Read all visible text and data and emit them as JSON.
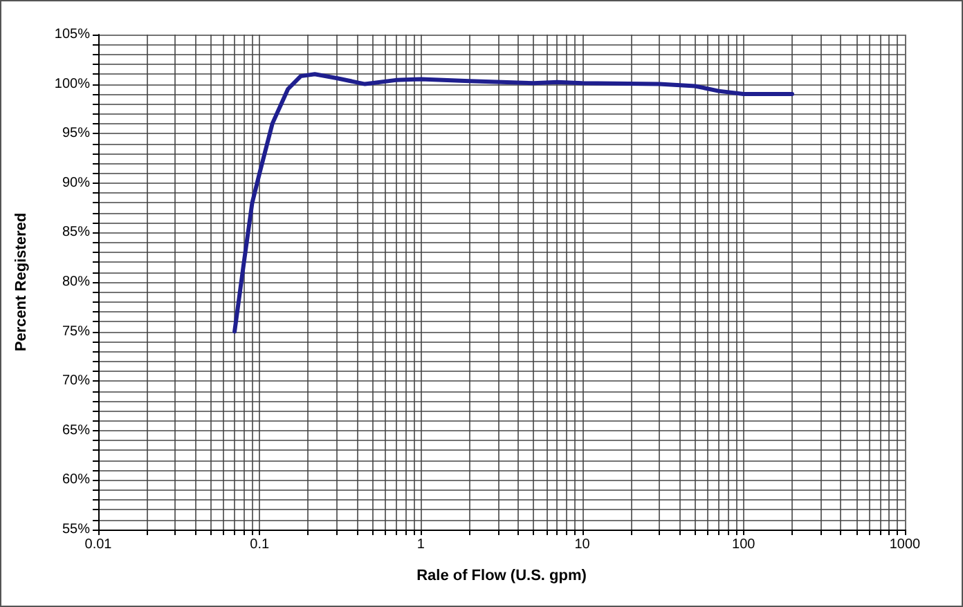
{
  "chart_data": {
    "type": "line",
    "xlabel": "Rale of Flow (U.S. gpm)",
    "ylabel": "Percent Registered",
    "x": [
      0.07,
      0.08,
      0.09,
      0.1,
      0.12,
      0.15,
      0.18,
      0.22,
      0.3,
      0.45,
      0.7,
      1,
      2,
      5,
      7,
      10,
      30,
      50,
      70,
      100,
      200
    ],
    "series": [
      {
        "color": "#1f1f8f",
        "values": [
          75,
          82,
          88,
          91,
          96,
          99.5,
          100.8,
          101,
          100.6,
          100,
          100.4,
          100.5,
          100.3,
          100.1,
          100.2,
          100.1,
          100,
          99.8,
          99.3,
          99,
          99
        ]
      }
    ],
    "log": "x",
    "grid": true,
    "marker": "none",
    "line_style": "solid",
    "xlim": [
      0.01,
      1000
    ],
    "ylim": [
      55,
      105
    ],
    "xticks": [
      0.01,
      {
        "value": 0.02,
        "label": null
      },
      {
        "value": 0.03,
        "label": null
      },
      {
        "value": 0.04,
        "label": null
      },
      {
        "value": 0.05,
        "label": null
      },
      {
        "value": 0.06,
        "label": null
      },
      {
        "value": 0.07,
        "label": null
      },
      {
        "value": 0.08,
        "label": null
      },
      {
        "value": 0.09,
        "label": null
      },
      0.1,
      {
        "value": 0.2,
        "label": null
      },
      {
        "value": 0.3,
        "label": null
      },
      {
        "value": 0.4,
        "label": null
      },
      {
        "value": 0.5,
        "label": null
      },
      {
        "value": 0.6,
        "label": null
      },
      {
        "value": 0.7,
        "label": null
      },
      {
        "value": 0.8,
        "label": null
      },
      {
        "value": 0.9,
        "label": null
      },
      1,
      {
        "value": 2,
        "label": null
      },
      {
        "value": 3,
        "label": null
      },
      {
        "value": 4,
        "label": null
      },
      {
        "value": 5,
        "label": null
      },
      {
        "value": 6,
        "label": null
      },
      {
        "value": 7,
        "label": null
      },
      {
        "value": 8,
        "label": null
      },
      {
        "value": 9,
        "label": null
      },
      10,
      {
        "value": 20,
        "label": null
      },
      {
        "value": 30,
        "label": null
      },
      {
        "value": 40,
        "label": null
      },
      {
        "value": 50,
        "label": null
      },
      {
        "value": 60,
        "label": null
      },
      {
        "value": 70,
        "label": null
      },
      {
        "value": 80,
        "label": null
      },
      {
        "value": 90,
        "label": null
      },
      100,
      {
        "value": 200,
        "label": null
      },
      {
        "value": 300,
        "label": null
      },
      {
        "value": 400,
        "label": null
      },
      {
        "value": 500,
        "label": null
      },
      {
        "value": 600,
        "label": null
      },
      {
        "value": 700,
        "label": null
      },
      {
        "value": 800,
        "label": null
      },
      {
        "value": 900,
        "label": null
      },
      1000
    ],
    "yticks": [
      {
        "value": 55,
        "label": "55%"
      },
      {
        "value": 56,
        "label": null
      },
      {
        "value": 57,
        "label": null
      },
      {
        "value": 58,
        "label": null
      },
      {
        "value": 59,
        "label": null
      },
      {
        "value": 60,
        "label": "60%"
      },
      {
        "value": 61,
        "label": null
      },
      {
        "value": 62,
        "label": null
      },
      {
        "value": 63,
        "label": null
      },
      {
        "value": 64,
        "label": null
      },
      {
        "value": 65,
        "label": "65%"
      },
      {
        "value": 66,
        "label": null
      },
      {
        "value": 67,
        "label": null
      },
      {
        "value": 68,
        "label": null
      },
      {
        "value": 69,
        "label": null
      },
      {
        "value": 70,
        "label": "70%"
      },
      {
        "value": 71,
        "label": null
      },
      {
        "value": 72,
        "label": null
      },
      {
        "value": 73,
        "label": null
      },
      {
        "value": 74,
        "label": null
      },
      {
        "value": 75,
        "label": "75%"
      },
      {
        "value": 76,
        "label": null
      },
      {
        "value": 77,
        "label": null
      },
      {
        "value": 78,
        "label": null
      },
      {
        "value": 79,
        "label": null
      },
      {
        "value": 80,
        "label": "80%"
      },
      {
        "value": 81,
        "label": null
      },
      {
        "value": 82,
        "label": null
      },
      {
        "value": 83,
        "label": null
      },
      {
        "value": 84,
        "label": null
      },
      {
        "value": 85,
        "label": "85%"
      },
      {
        "value": 86,
        "label": null
      },
      {
        "value": 87,
        "label": null
      },
      {
        "value": 88,
        "label": null
      },
      {
        "value": 89,
        "label": null
      },
      {
        "value": 90,
        "label": "90%"
      },
      {
        "value": 91,
        "label": null
      },
      {
        "value": 92,
        "label": null
      },
      {
        "value": 93,
        "label": null
      },
      {
        "value": 94,
        "label": null
      },
      {
        "value": 95,
        "label": "95%"
      },
      {
        "value": 96,
        "label": null
      },
      {
        "value": 97,
        "label": null
      },
      {
        "value": 98,
        "label": null
      },
      {
        "value": 99,
        "label": null
      },
      {
        "value": 100,
        "label": "100%"
      },
      {
        "value": 101,
        "label": null
      },
      {
        "value": 102,
        "label": null
      },
      {
        "value": 103,
        "label": null
      },
      {
        "value": 104,
        "label": null
      },
      {
        "value": 105,
        "label": "105%"
      }
    ]
  }
}
